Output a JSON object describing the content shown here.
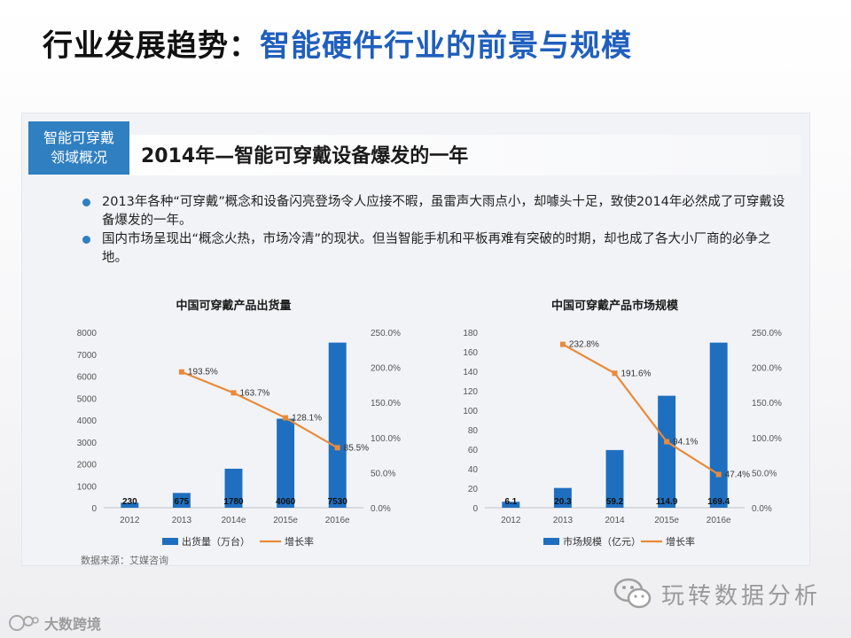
{
  "slide": {
    "title_part1": "行业发展趋势：",
    "title_part2": "智能硬件行业的前景与规模"
  },
  "panel": {
    "tag_line1": "智能可穿戴",
    "tag_line2": "领域概况",
    "headline": "2014年—智能可穿戴设备爆发的一年",
    "bullets": [
      "2013年各种“可穿戴”概念和设备闪亮登场令人应接不暇，虽雷声大雨点小，却噱头十足，致使2014年必然成了可穿戴设备爆发的一年。",
      "国内市场呈现出“概念火热，市场冷清”的现状。但当智能手机和平板再难有突破的时期，却也成了各大小厂商的必争之地。"
    ],
    "source": "数据来源：艾媒咨询"
  },
  "watermark": {
    "text": "玩转数据分析",
    "brand": "大数跨境"
  },
  "colors": {
    "bar": "#1f6fc0",
    "line": "#e98a3a",
    "accent": "#2f7fc1",
    "title_blue": "#1f5fbd"
  },
  "chart_data": [
    {
      "type": "bar",
      "title": "中国可穿戴产品出货量",
      "categories": [
        "2012",
        "2013",
        "2014e",
        "2015e",
        "2016e"
      ],
      "series": [
        {
          "name": "出货量（万台）",
          "type": "bar",
          "axis": "left",
          "values": [
            230,
            675,
            1780,
            4060,
            7530
          ]
        },
        {
          "name": "增长率",
          "type": "line",
          "axis": "right",
          "values": [
            null,
            193.5,
            163.7,
            128.1,
            85.5
          ]
        }
      ],
      "bar_labels": [
        "230",
        "675",
        "1780",
        "4060",
        "7530"
      ],
      "line_labels": [
        "",
        "193.5%",
        "163.7%",
        "128.1%",
        "85.5%"
      ],
      "y_left": {
        "min": 0,
        "max": 8000,
        "step": 1000,
        "ticks": [
          "0",
          "1000",
          "2000",
          "3000",
          "4000",
          "5000",
          "6000",
          "7000",
          "8000"
        ]
      },
      "y_right": {
        "min": 0,
        "max": 250,
        "step": 50,
        "ticks": [
          "0.0%",
          "50.0%",
          "100.0%",
          "150.0%",
          "200.0%",
          "250.0%"
        ]
      },
      "legend": [
        "出货量（万台）",
        "增长率"
      ]
    },
    {
      "type": "bar",
      "title": "中国可穿戴产品市场规模",
      "categories": [
        "2012",
        "2013",
        "2014",
        "2015e",
        "2016e"
      ],
      "series": [
        {
          "name": "市场规模（亿元）",
          "type": "bar",
          "axis": "left",
          "values": [
            6.1,
            20.3,
            59.2,
            114.9,
            169.4
          ]
        },
        {
          "name": "增长率",
          "type": "line",
          "axis": "right",
          "values": [
            null,
            232.8,
            191.6,
            94.1,
            47.4
          ]
        }
      ],
      "bar_labels": [
        "6.1",
        "20.3",
        "59.2",
        "114.9",
        "169.4"
      ],
      "line_labels": [
        "",
        "232.8%",
        "191.6%",
        "94.1%",
        "47.4%"
      ],
      "y_left": {
        "min": 0,
        "max": 180,
        "step": 20,
        "ticks": [
          "0",
          "20",
          "40",
          "60",
          "80",
          "100",
          "120",
          "140",
          "160",
          "180"
        ]
      },
      "y_right": {
        "min": 0,
        "max": 250,
        "step": 50,
        "ticks": [
          "0.0%",
          "50.0%",
          "100.0%",
          "150.0%",
          "200.0%",
          "250.0%"
        ]
      },
      "legend": [
        "市场规模（亿元）",
        "增长率"
      ]
    }
  ]
}
